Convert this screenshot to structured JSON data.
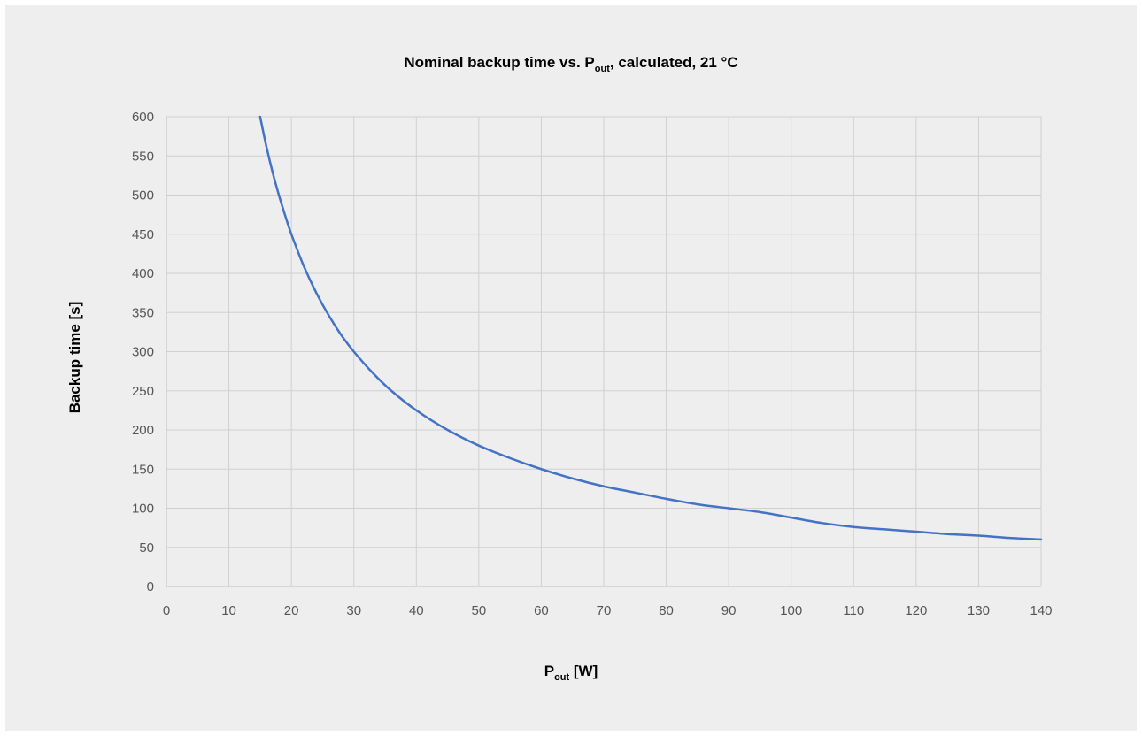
{
  "chart_data": {
    "type": "line",
    "title": {
      "main": "Nominal backup time vs. P",
      "sub": "out",
      "suffix": ", calculated, 21 °C"
    },
    "xlabel": {
      "main": "P",
      "sub": "out",
      "suffix": " [W]"
    },
    "ylabel": "Backup time [s]",
    "xlim": [
      0,
      140
    ],
    "ylim": [
      0,
      600
    ],
    "xticks": [
      0,
      10,
      20,
      30,
      40,
      50,
      60,
      70,
      80,
      90,
      100,
      110,
      120,
      130,
      140
    ],
    "yticks": [
      0,
      50,
      100,
      150,
      200,
      250,
      300,
      350,
      400,
      450,
      500,
      550,
      600
    ],
    "grid": true,
    "series": [
      {
        "color": "#4472c4",
        "x": [
          15,
          16,
          17,
          18,
          19,
          20,
          22,
          24,
          26,
          28,
          30,
          33,
          36,
          40,
          45,
          50,
          55,
          60,
          65,
          70,
          75,
          80,
          85,
          90,
          95,
          100,
          105,
          110,
          115,
          120,
          125,
          130,
          135,
          140
        ],
        "y": [
          600,
          562,
          529,
          500,
          474,
          450,
          409,
          375,
          346,
          321,
          300,
          273,
          250,
          225,
          200,
          180,
          164,
          150,
          138,
          128,
          120,
          112,
          105,
          100,
          95,
          88,
          81,
          76,
          73,
          70,
          67,
          65,
          62,
          60
        ]
      }
    ]
  }
}
